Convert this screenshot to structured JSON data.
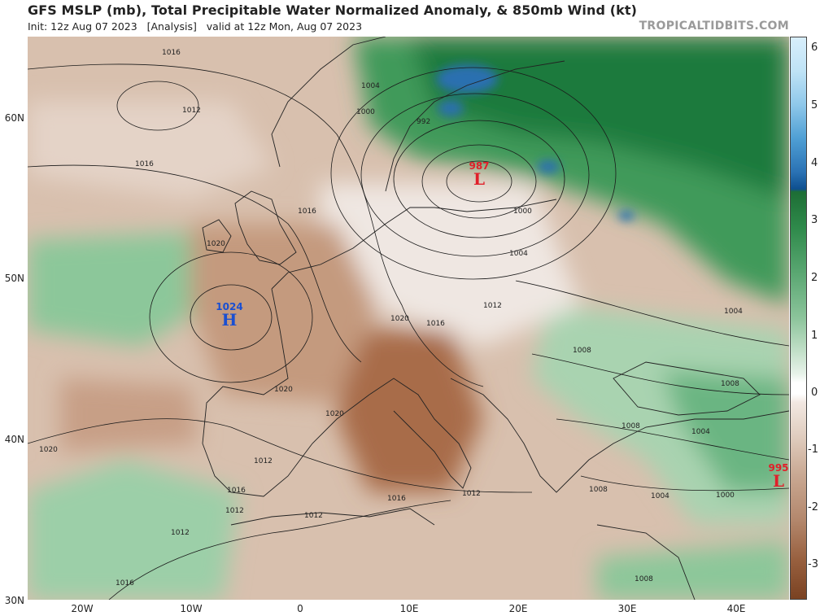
{
  "header": {
    "title": "GFS MSLP (mb), Total Precipitable Water Normalized Anomaly, & 850mb Wind (kt)",
    "subtitle": "Init: 12z Aug 07 2023   [Analysis]   valid at 12z Mon, Aug 07 2023",
    "brand": "TROPICALTIDBITS.COM"
  },
  "axes": {
    "lat_labels": [
      "60N",
      "50N",
      "40N",
      "30N"
    ],
    "lon_labels": [
      "20W",
      "10W",
      "0",
      "10E",
      "20E",
      "30E",
      "40E"
    ]
  },
  "colorbar": {
    "ticks": [
      "6",
      "5",
      "4",
      "3",
      "2",
      "1",
      "0",
      "-1",
      "-2",
      "-3"
    ],
    "colors": {
      "very_wet": "#1f6fb5",
      "wet": "#1f7a3c",
      "moist": "#8fc79a",
      "neutral": "#ffffff",
      "dry": "#c9a48c",
      "very_dry": "#8a5030"
    }
  },
  "pressure_centers": [
    {
      "type": "L",
      "value": "987",
      "color": "#e0202a"
    },
    {
      "type": "H",
      "value": "1024",
      "color": "#1a4fd1"
    },
    {
      "type": "L",
      "value": "995",
      "color": "#e0202a"
    }
  ],
  "isobar_labels": [
    "1016",
    "1012",
    "1016",
    "1020",
    "1016",
    "1004",
    "1000",
    "992",
    "1000",
    "1004",
    "1012",
    "1016",
    "1020",
    "1008",
    "1004",
    "1008",
    "1020",
    "1020",
    "1012",
    "1016",
    "1012",
    "1016",
    "1012",
    "1012",
    "1016",
    "1008",
    "1004",
    "1008",
    "1000",
    "1004",
    "1008",
    "1020",
    "1012"
  ]
}
